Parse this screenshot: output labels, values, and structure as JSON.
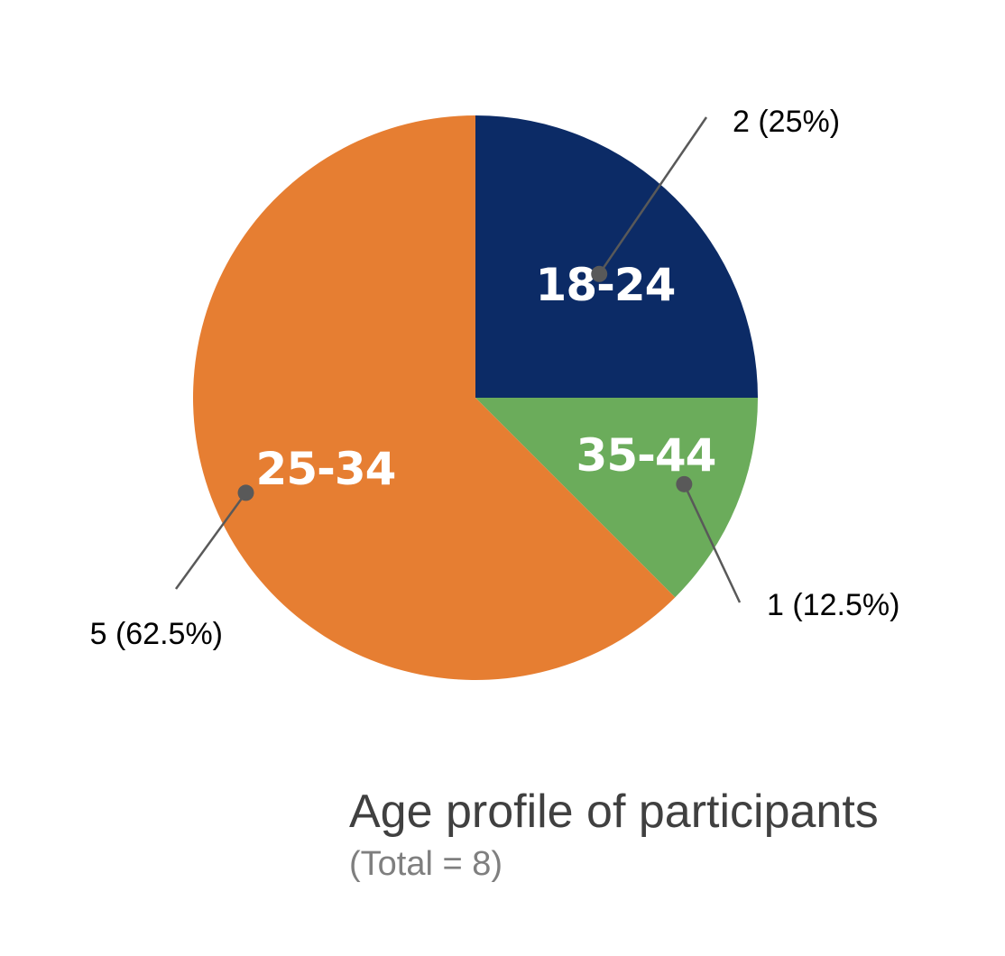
{
  "chart_data": {
    "type": "pie",
    "title": "Age profile of participants",
    "subtitle": "(Total = 8)",
    "slices": [
      {
        "label": "18-24",
        "value": 2,
        "value_label": "2 (25%)",
        "color": "#0c2b66"
      },
      {
        "label": "35-44",
        "value": 1,
        "value_label": "1 (12.5%)",
        "color": "#6bac5b"
      },
      {
        "label": "25-34",
        "value": 5,
        "value_label": "5 (62.5%)",
        "color": "#e67e32"
      }
    ],
    "start_angle": "12 o'clock",
    "direction": "clockwise"
  }
}
